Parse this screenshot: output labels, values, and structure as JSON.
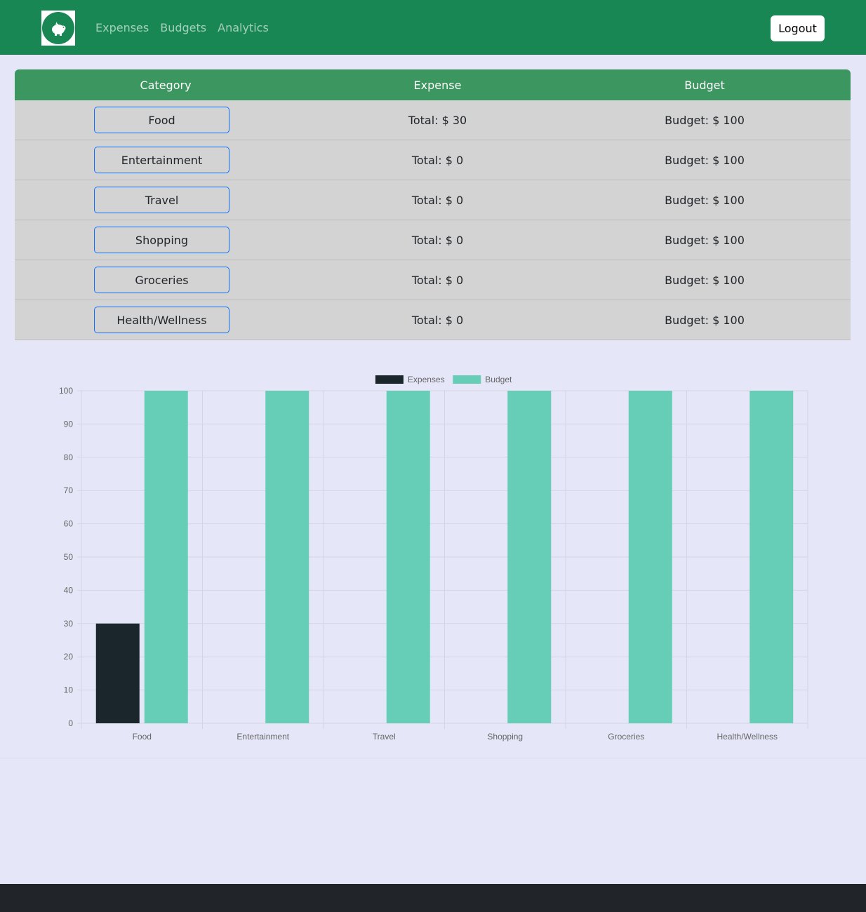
{
  "nav": {
    "links": [
      "Expenses",
      "Budgets",
      "Analytics"
    ],
    "logout_label": "Logout",
    "logo_icon": "piggy-bank-icon"
  },
  "table": {
    "headers": [
      "Category",
      "Expense",
      "Budget"
    ],
    "rows": [
      {
        "category": "Food",
        "expense": "Total: $ 30",
        "budget": "Budget: $ 100"
      },
      {
        "category": "Entertainment",
        "expense": "Total: $ 0",
        "budget": "Budget: $ 100"
      },
      {
        "category": "Travel",
        "expense": "Total: $ 0",
        "budget": "Budget: $ 100"
      },
      {
        "category": "Shopping",
        "expense": "Total: $ 0",
        "budget": "Budget: $ 100"
      },
      {
        "category": "Groceries",
        "expense": "Total: $ 0",
        "budget": "Budget: $ 100"
      },
      {
        "category": "Health/Wellness",
        "expense": "Total: $ 0",
        "budget": "Budget: $ 100"
      }
    ]
  },
  "colors": {
    "navbar": "#198754",
    "header_row": "#3b9660",
    "expenses_bar": "#1a262c",
    "budget_bar": "#66cdb6"
  },
  "chart_data": {
    "type": "bar",
    "categories": [
      "Food",
      "Entertainment",
      "Travel",
      "Shopping",
      "Groceries",
      "Health/Wellness"
    ],
    "series": [
      {
        "name": "Expenses",
        "values": [
          30,
          0,
          0,
          0,
          0,
          0
        ],
        "color": "#1a262c"
      },
      {
        "name": "Budget",
        "values": [
          100,
          100,
          100,
          100,
          100,
          100
        ],
        "color": "#66cdb6"
      }
    ],
    "ylim": [
      0,
      100
    ],
    "yticks": [
      0,
      10,
      20,
      30,
      40,
      50,
      60,
      70,
      80,
      90,
      100
    ],
    "grid": true,
    "legend": "top-center"
  }
}
